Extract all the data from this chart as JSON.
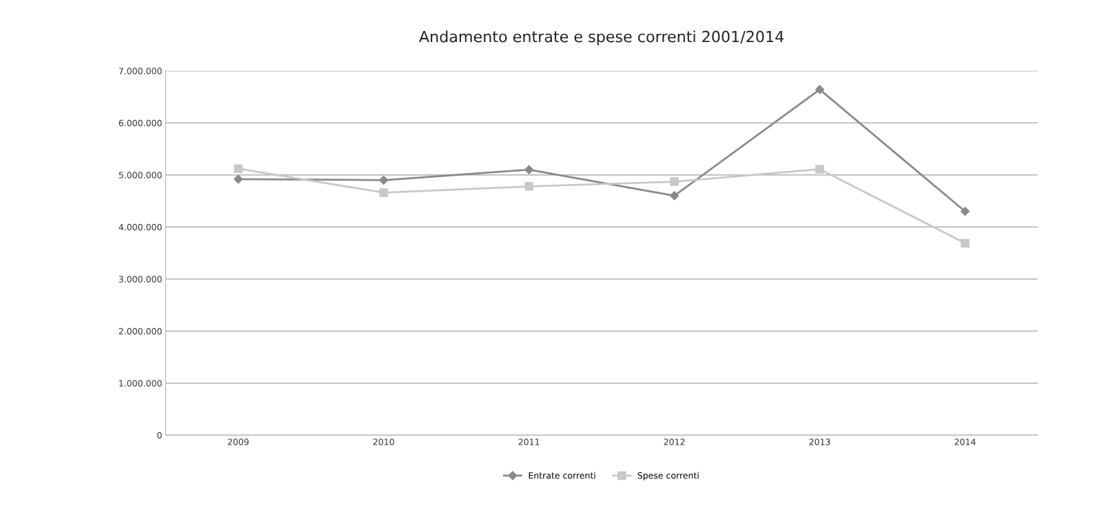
{
  "chart_data": {
    "type": "line",
    "title": "Andamento entrate e spese correnti 2001/2014",
    "categories": [
      "2009",
      "2010",
      "2011",
      "2012",
      "2013",
      "2014"
    ],
    "series": [
      {
        "name": "Entrate correnti",
        "color": "#8a8a8a",
        "marker": "diamond",
        "values": [
          4920000,
          4900000,
          5100000,
          4600000,
          6640000,
          4300000
        ]
      },
      {
        "name": "Spese correnti",
        "color": "#c8c8c8",
        "marker": "square",
        "values": [
          5120000,
          4660000,
          4780000,
          4870000,
          5110000,
          3690000
        ]
      }
    ],
    "ylim": [
      0,
      7000000
    ],
    "yticks": [
      {
        "value": 0,
        "label": "0"
      },
      {
        "value": 1000000,
        "label": "1.000.000"
      },
      {
        "value": 2000000,
        "label": "2.000.000"
      },
      {
        "value": 3000000,
        "label": "3.000.000"
      },
      {
        "value": 4000000,
        "label": "4.000.000"
      },
      {
        "value": 5000000,
        "label": "5.000.000"
      },
      {
        "value": 6000000,
        "label": "6.000.000"
      },
      {
        "value": 7000000,
        "label": "7.000.000"
      }
    ],
    "grid": "y",
    "legend": "bottom",
    "line_style": "solid"
  }
}
